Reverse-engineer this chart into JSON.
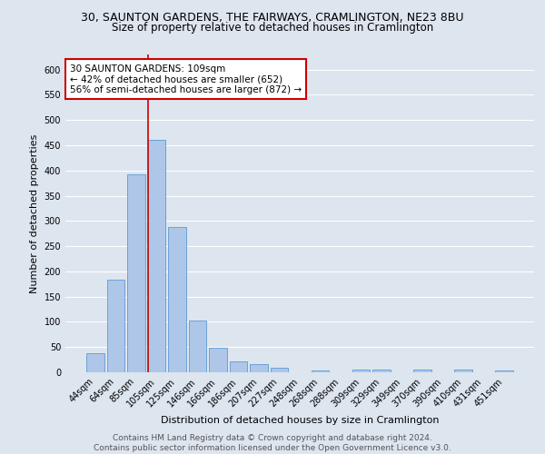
{
  "title": "30, SAUNTON GARDENS, THE FAIRWAYS, CRAMLINGTON, NE23 8BU",
  "subtitle": "Size of property relative to detached houses in Cramlington",
  "xlabel": "Distribution of detached houses by size in Cramlington",
  "ylabel": "Number of detached properties",
  "categories": [
    "44sqm",
    "64sqm",
    "85sqm",
    "105sqm",
    "125sqm",
    "146sqm",
    "166sqm",
    "186sqm",
    "207sqm",
    "227sqm",
    "248sqm",
    "268sqm",
    "288sqm",
    "309sqm",
    "329sqm",
    "349sqm",
    "370sqm",
    "390sqm",
    "410sqm",
    "431sqm",
    "451sqm"
  ],
  "values": [
    37,
    183,
    393,
    460,
    288,
    102,
    49,
    22,
    16,
    9,
    0,
    4,
    0,
    6,
    6,
    0,
    6,
    0,
    6,
    0,
    4
  ],
  "bar_color": "#aec6e8",
  "bar_edge_color": "#5b9bd5",
  "property_line_index": 3,
  "property_line_color": "#cc0000",
  "annotation_line1": "30 SAUNTON GARDENS: 109sqm",
  "annotation_line2": "← 42% of detached houses are smaller (652)",
  "annotation_line3": "56% of semi-detached houses are larger (872) →",
  "annotation_box_color": "#ffffff",
  "annotation_box_edge": "#cc0000",
  "ylim": [
    0,
    630
  ],
  "yticks": [
    0,
    50,
    100,
    150,
    200,
    250,
    300,
    350,
    400,
    450,
    500,
    550,
    600
  ],
  "background_color": "#dde5ef",
  "grid_color": "#ffffff",
  "footer_line1": "Contains HM Land Registry data © Crown copyright and database right 2024.",
  "footer_line2": "Contains public sector information licensed under the Open Government Licence v3.0.",
  "title_fontsize": 9,
  "subtitle_fontsize": 8.5,
  "axis_label_fontsize": 8,
  "tick_fontsize": 7,
  "annotation_fontsize": 7.5,
  "footer_fontsize": 6.5
}
